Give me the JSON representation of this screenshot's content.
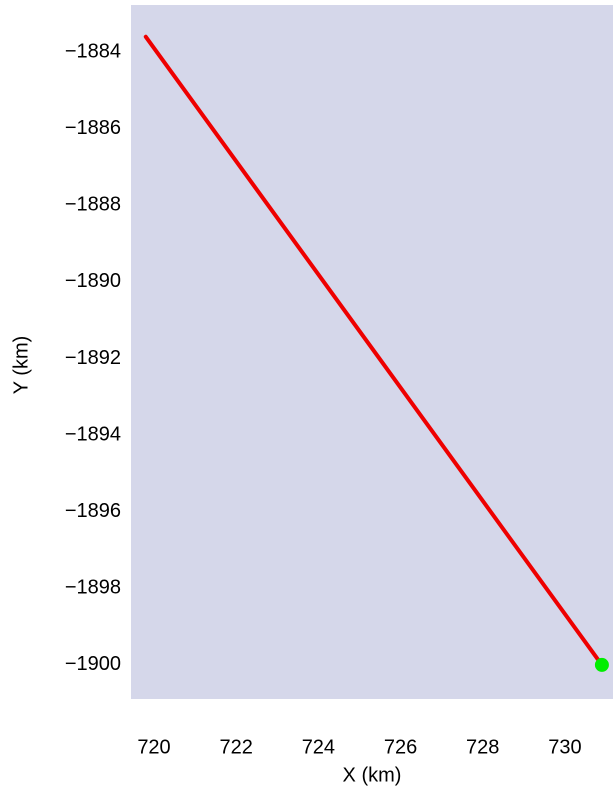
{
  "chart_data": {
    "type": "line",
    "xlabel": "X (km)",
    "ylabel": "Y (km)",
    "background": "#d5d7ea",
    "series": [
      {
        "color": "#ee0000",
        "x": [
          719.8,
          730.9
        ],
        "values": [
          -1883.6,
          -1900.0
        ]
      },
      {
        "color": "#00ee00",
        "marker": "circle",
        "x": [
          730.9
        ],
        "values": [
          -1900.0
        ]
      }
    ],
    "xlim": [
      719.44,
      731.17
    ],
    "ylim": [
      -1900.89,
      -1882.77
    ],
    "xticks": [
      720,
      722,
      724,
      726,
      728,
      730
    ],
    "yticks": [
      {
        "value": -1884,
        "label": "−1884"
      },
      {
        "value": -1886,
        "label": "−1886"
      },
      {
        "value": -1888,
        "label": "−1888"
      },
      {
        "value": -1890,
        "label": "−1890"
      },
      {
        "value": -1892,
        "label": "−1892"
      },
      {
        "value": -1894,
        "label": "−1894"
      },
      {
        "value": -1896,
        "label": "−1896"
      },
      {
        "value": -1898,
        "label": "−1898"
      },
      {
        "value": -1900,
        "label": "−1900"
      }
    ],
    "grid": false
  }
}
